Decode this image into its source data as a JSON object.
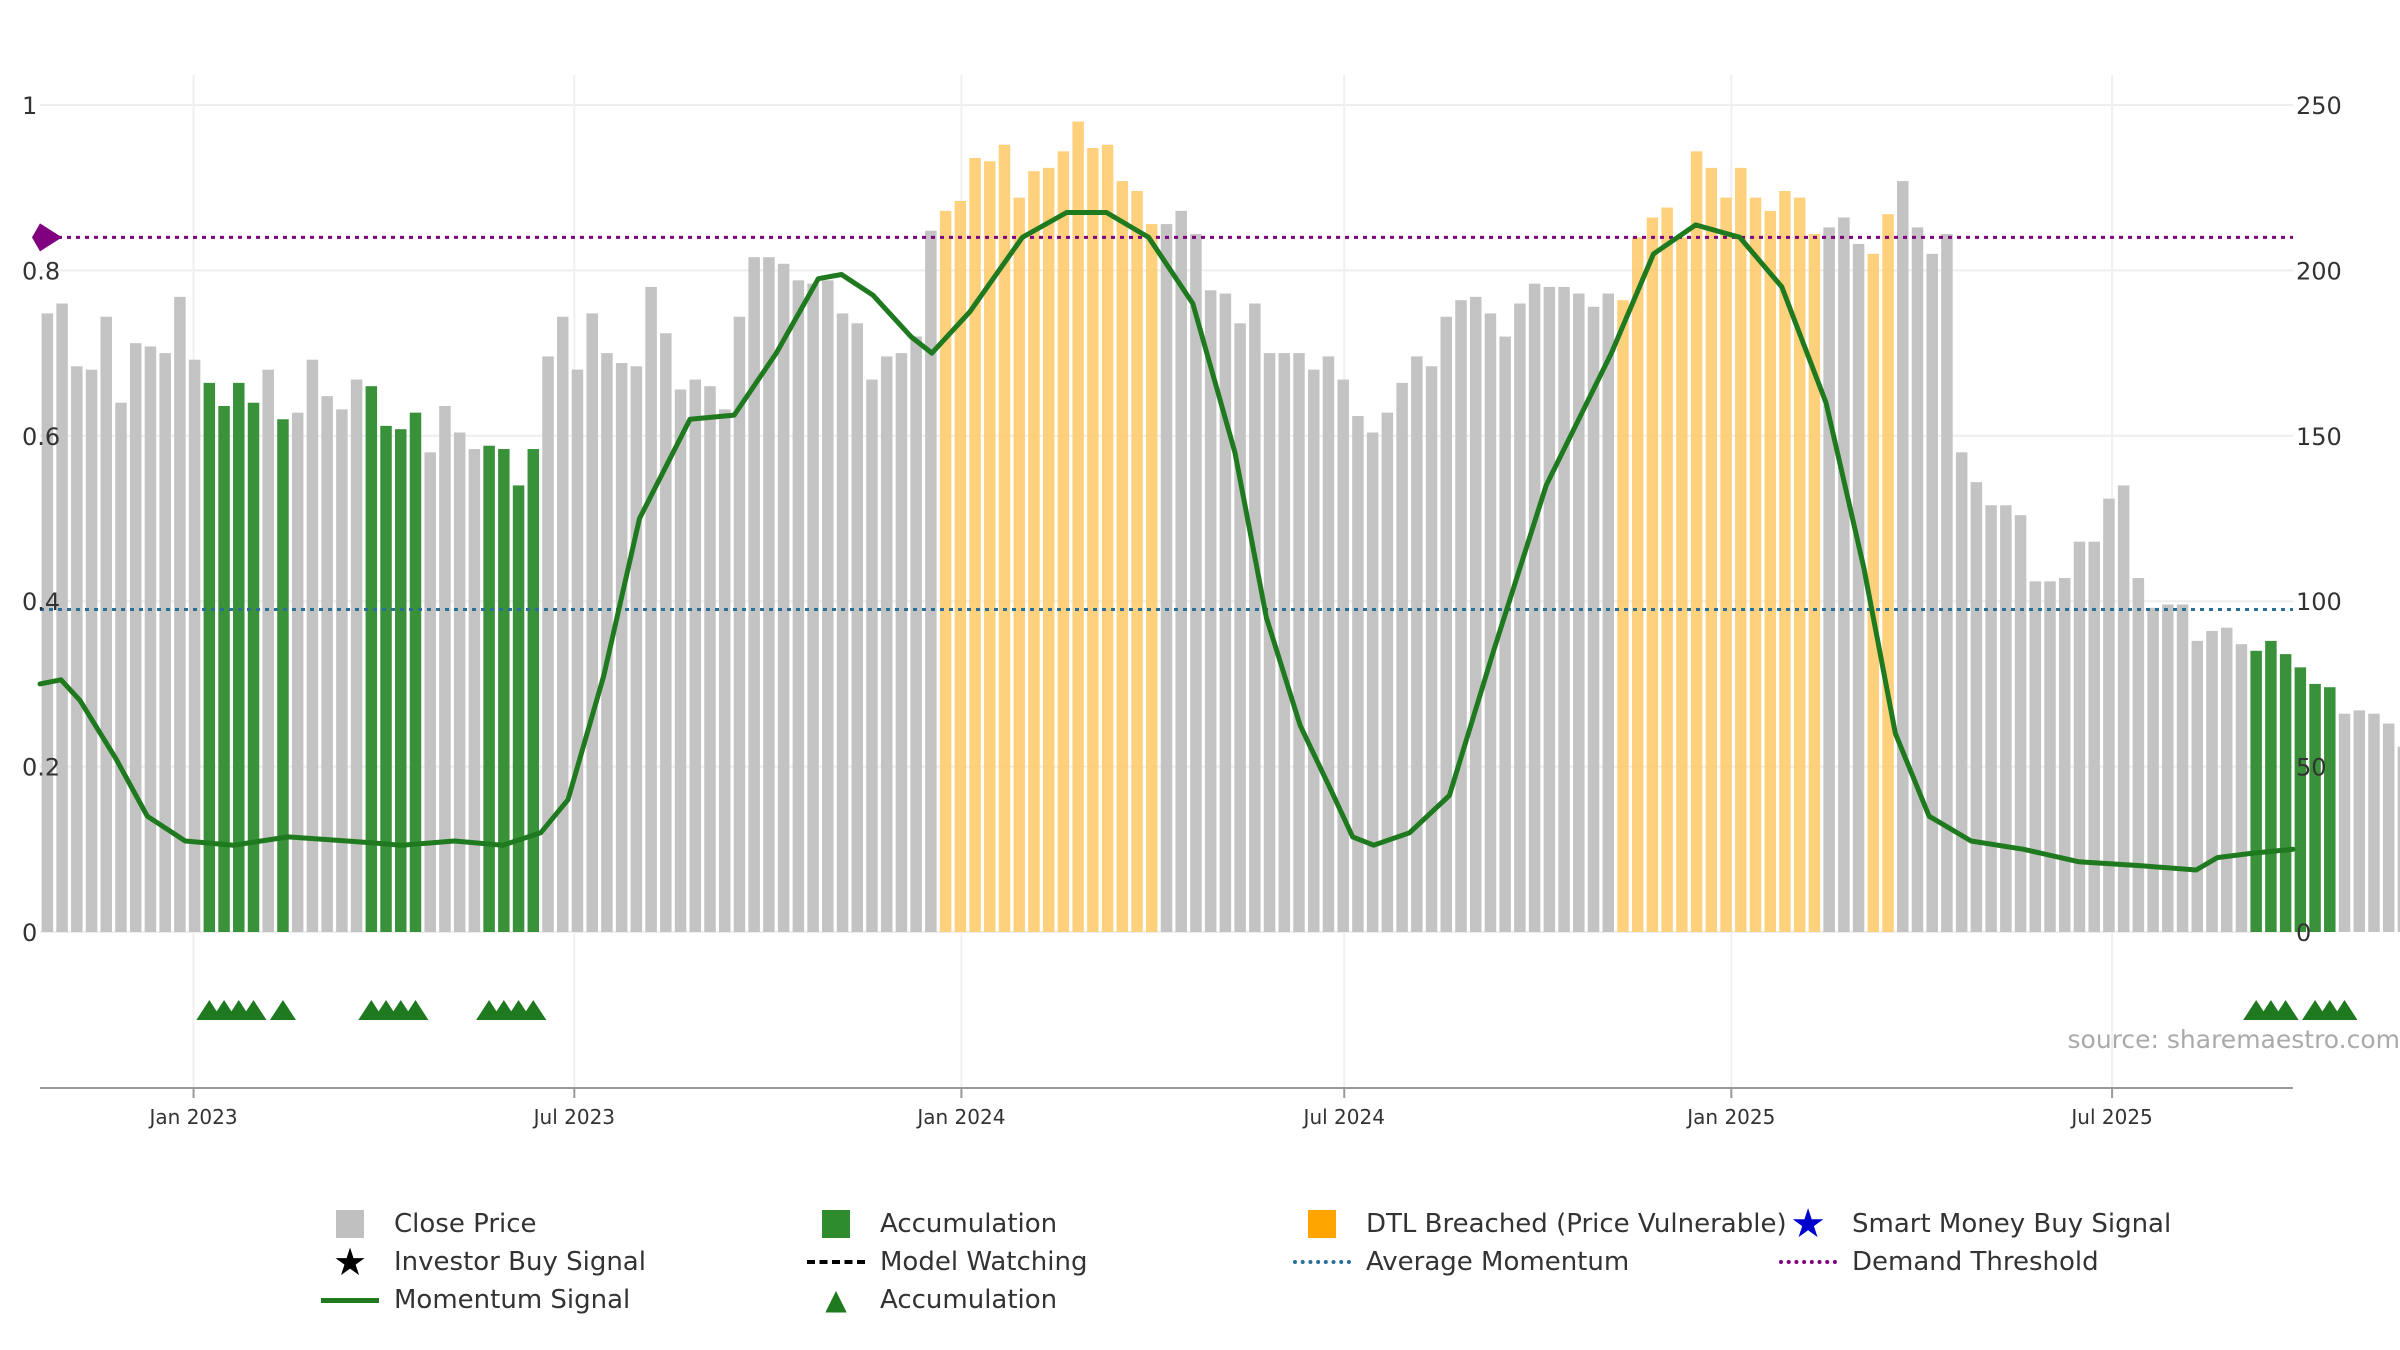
{
  "chart_data": {
    "type": "bar",
    "source": "source: sharemaestro.com",
    "colors": {
      "close_price": "#c0c0c0",
      "accumulation": "#2e8b2e",
      "dtl_breached": "#ffc966",
      "momentum": "#1f7a1f",
      "average_momentum": "#2a6f97",
      "demand_threshold": "#800080",
      "smart_money": "#0000cc"
    },
    "left_axis": {
      "range": [
        0,
        1
      ],
      "ticks": [
        "0",
        "0.2",
        "0.4",
        "0.6",
        "0.8",
        "1"
      ]
    },
    "right_axis": {
      "range": [
        0,
        250
      ],
      "ticks": [
        "0",
        "50",
        "100",
        "150",
        "200",
        "250"
      ]
    },
    "x_axis": {
      "range": [
        "2022-10-20",
        "2025-09-25"
      ],
      "ticks": [
        {
          "date": "2023-01-01",
          "label": "Jan 2023"
        },
        {
          "date": "2023-07-01",
          "label": "Jul 2023"
        },
        {
          "date": "2024-01-01",
          "label": "Jan 2024"
        },
        {
          "date": "2024-07-01",
          "label": "Jul 2024"
        },
        {
          "date": "2025-01-01",
          "label": "Jan 2025"
        },
        {
          "date": "2025-07-01",
          "label": "Jul 2025"
        }
      ]
    },
    "weekly_start": "2022-10-20",
    "close_prices": [
      187,
      190,
      171,
      170,
      186,
      160,
      178,
      177,
      175,
      192,
      173,
      166,
      159,
      166,
      160,
      170,
      155,
      157,
      173,
      162,
      158,
      167,
      165,
      153,
      152,
      157,
      145,
      159,
      151,
      146,
      147,
      146,
      135,
      146,
      174,
      186,
      170,
      187,
      175,
      172,
      171,
      195,
      181,
      164,
      167,
      165,
      158,
      186,
      204,
      204,
      202,
      197,
      196,
      197,
      187,
      184,
      167,
      174,
      175,
      180,
      212,
      218,
      221,
      234,
      233,
      238,
      222,
      230,
      231,
      236,
      245,
      237,
      238,
      227,
      224,
      214,
      214,
      218,
      211,
      194,
      193,
      184,
      190,
      175,
      175,
      175,
      170,
      174,
      167,
      156,
      151,
      157,
      166,
      174,
      171,
      186,
      191,
      192,
      187,
      180,
      190,
      196,
      195,
      195,
      193,
      189,
      193,
      191,
      210,
      216,
      219,
      210,
      236,
      231,
      222,
      231,
      222,
      218,
      224,
      222,
      211,
      213,
      216,
      208,
      205,
      217,
      227,
      213,
      205,
      211,
      145,
      136,
      129,
      129,
      126,
      106,
      106,
      107,
      118,
      118,
      131,
      135,
      107,
      98,
      99,
      99,
      88,
      91,
      92,
      87,
      85,
      88,
      84,
      80,
      75,
      74,
      66,
      67,
      66,
      63,
      56,
      57
    ],
    "accumulation_weeks": [
      11,
      12,
      13,
      14,
      16,
      22,
      23,
      24,
      25,
      30,
      31,
      32,
      33,
      150,
      151,
      152,
      153,
      154,
      155
    ],
    "dtl_weeks": [
      61,
      62,
      63,
      64,
      65,
      66,
      67,
      68,
      69,
      70,
      71,
      72,
      73,
      74,
      75,
      107,
      108,
      109,
      110,
      111,
      112,
      113,
      114,
      115,
      116,
      117,
      118,
      119,
      120,
      124,
      125
    ],
    "accumulation_triangles": [
      11,
      12,
      13,
      14,
      16,
      22,
      23,
      24,
      25,
      30,
      31,
      32,
      33,
      150,
      151,
      152,
      154,
      155,
      156
    ],
    "momentum": [
      {
        "date": "2022-10-20",
        "value": 0.3
      },
      {
        "date": "2022-10-30",
        "value": 0.305
      },
      {
        "date": "2022-11-08",
        "value": 0.28
      },
      {
        "date": "2022-11-25",
        "value": 0.21
      },
      {
        "date": "2022-12-10",
        "value": 0.14
      },
      {
        "date": "2022-12-28",
        "value": 0.11
      },
      {
        "date": "2023-01-20",
        "value": 0.105
      },
      {
        "date": "2023-02-15",
        "value": 0.115
      },
      {
        "date": "2023-03-15",
        "value": 0.11
      },
      {
        "date": "2023-04-10",
        "value": 0.105
      },
      {
        "date": "2023-05-05",
        "value": 0.11
      },
      {
        "date": "2023-05-28",
        "value": 0.105
      },
      {
        "date": "2023-06-15",
        "value": 0.12
      },
      {
        "date": "2023-06-28",
        "value": 0.16
      },
      {
        "date": "2023-07-15",
        "value": 0.31
      },
      {
        "date": "2023-08-01",
        "value": 0.5
      },
      {
        "date": "2023-08-25",
        "value": 0.62
      },
      {
        "date": "2023-09-15",
        "value": 0.625
      },
      {
        "date": "2023-10-05",
        "value": 0.7
      },
      {
        "date": "2023-10-25",
        "value": 0.79
      },
      {
        "date": "2023-11-05",
        "value": 0.795
      },
      {
        "date": "2023-11-20",
        "value": 0.77
      },
      {
        "date": "2023-12-08",
        "value": 0.72
      },
      {
        "date": "2023-12-18",
        "value": 0.7
      },
      {
        "date": "2024-01-05",
        "value": 0.75
      },
      {
        "date": "2024-01-30",
        "value": 0.84
      },
      {
        "date": "2024-02-20",
        "value": 0.87
      },
      {
        "date": "2024-03-10",
        "value": 0.87
      },
      {
        "date": "2024-03-30",
        "value": 0.84
      },
      {
        "date": "2024-04-20",
        "value": 0.76
      },
      {
        "date": "2024-05-10",
        "value": 0.58
      },
      {
        "date": "2024-05-25",
        "value": 0.38
      },
      {
        "date": "2024-06-10",
        "value": 0.25
      },
      {
        "date": "2024-06-25",
        "value": 0.17
      },
      {
        "date": "2024-07-05",
        "value": 0.115
      },
      {
        "date": "2024-07-15",
        "value": 0.105
      },
      {
        "date": "2024-08-01",
        "value": 0.12
      },
      {
        "date": "2024-08-20",
        "value": 0.165
      },
      {
        "date": "2024-09-10",
        "value": 0.34
      },
      {
        "date": "2024-10-05",
        "value": 0.54
      },
      {
        "date": "2024-11-05",
        "value": 0.7
      },
      {
        "date": "2024-11-25",
        "value": 0.82
      },
      {
        "date": "2024-12-15",
        "value": 0.855
      },
      {
        "date": "2025-01-05",
        "value": 0.84
      },
      {
        "date": "2025-01-25",
        "value": 0.78
      },
      {
        "date": "2025-02-15",
        "value": 0.64
      },
      {
        "date": "2025-03-05",
        "value": 0.44
      },
      {
        "date": "2025-03-20",
        "value": 0.24
      },
      {
        "date": "2025-04-05",
        "value": 0.14
      },
      {
        "date": "2025-04-25",
        "value": 0.11
      },
      {
        "date": "2025-05-20",
        "value": 0.1
      },
      {
        "date": "2025-06-15",
        "value": 0.085
      },
      {
        "date": "2025-07-15",
        "value": 0.08
      },
      {
        "date": "2025-08-10",
        "value": 0.075
      },
      {
        "date": "2025-08-20",
        "value": 0.09
      },
      {
        "date": "2025-09-05",
        "value": 0.095
      },
      {
        "date": "2025-09-25",
        "value": 0.1
      }
    ],
    "average_momentum": 0.39,
    "demand_threshold": 0.84
  },
  "legend": {
    "close_price": "Close Price",
    "accumulation": "Accumulation",
    "dtl_breached": "DTL Breached (Price Vulnerable)",
    "smart_money_buy": "Smart Money Buy Signal",
    "investor_buy": "Investor Buy Signal",
    "model_watching": "Model Watching",
    "average_momentum": "Average Momentum",
    "demand_threshold": "Demand Threshold",
    "momentum_signal": "Momentum Signal",
    "accumulation_triangle": "Accumulation"
  }
}
